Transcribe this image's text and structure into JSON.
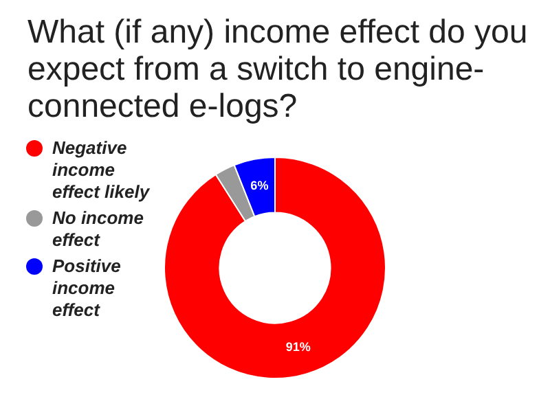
{
  "chart_data": {
    "type": "donut",
    "title": "What (if any) income effect do you expect from a switch to engine-connected e-logs?",
    "categories": [
      "Negative income effect likely",
      "No income effect",
      "Positive income effect"
    ],
    "values": [
      91,
      3,
      6
    ],
    "colors": [
      "#ff0000",
      "#999999",
      "#0000ff"
    ],
    "value_labels": [
      "91%",
      null,
      "6%"
    ],
    "legend": "left"
  }
}
